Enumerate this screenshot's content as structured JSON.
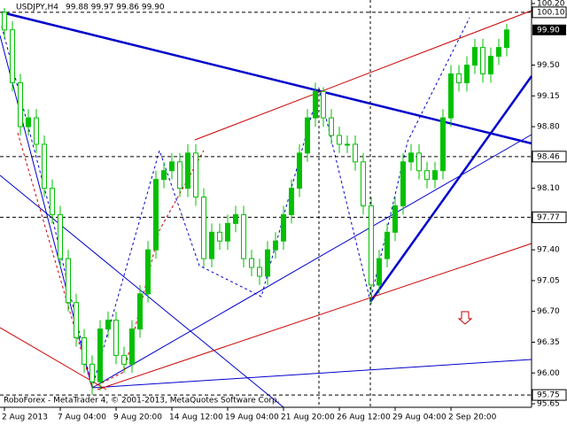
{
  "chart_data": {
    "type": "candlestick",
    "title": "USDJPY,H4",
    "ohlc_text": "99.88 99.97 99.86 99.90",
    "footer": "RoboForex - MetaTrader 4, © 2001-2013, MetaQuotes Software Corp.",
    "categories": [
      "2 Aug 2013",
      null,
      null,
      null,
      null,
      null,
      null,
      "7 Aug 04:00",
      null,
      null,
      null,
      null,
      null,
      null,
      "9 Aug 20:00",
      null,
      null,
      null,
      null,
      null,
      null,
      "14 Aug 12:00",
      null,
      null,
      null,
      null,
      null,
      null,
      "19 Aug 04:00",
      null,
      null,
      null,
      null,
      null,
      null,
      "21 Aug 20:00",
      null,
      null,
      null,
      null,
      null,
      null,
      "26 Aug 12:00",
      null,
      null,
      null,
      null,
      null,
      null,
      "29 Aug 04:00",
      null,
      null,
      null,
      null,
      null,
      null,
      "2 Sep 20:00",
      null,
      null,
      null,
      null,
      null,
      null,
      null
    ],
    "open": [
      100.1,
      99.9,
      99.3,
      98.8,
      98.9,
      98.6,
      98.1,
      97.8,
      97.3,
      96.8,
      96.4,
      96.1,
      95.9,
      96.5,
      96.6,
      96.2,
      96.1,
      96.5,
      96.9,
      97.4,
      98.2,
      98.3,
      98.4,
      98.1,
      98.5,
      98.0,
      97.3,
      97.6,
      97.5,
      97.7,
      97.8,
      97.3,
      97.2,
      97.1,
      97.4,
      97.5,
      97.8,
      98.1,
      98.5,
      98.9,
      99.2,
      98.9,
      98.7,
      98.6,
      98.6,
      98.4,
      97.9,
      97.0,
      97.3,
      97.6,
      97.9,
      98.4,
      98.5,
      98.3,
      98.2,
      98.3,
      98.9,
      99.4,
      99.3,
      99.5,
      99.7,
      99.4,
      99.6,
      99.7
    ],
    "high": [
      100.15,
      100.0,
      99.4,
      99.0,
      99.0,
      98.7,
      98.2,
      97.9,
      97.4,
      96.9,
      96.5,
      96.2,
      96.6,
      96.7,
      96.7,
      96.3,
      96.6,
      97.0,
      97.5,
      98.3,
      98.4,
      98.5,
      98.5,
      98.6,
      98.6,
      98.1,
      97.7,
      97.7,
      97.8,
      97.9,
      97.9,
      97.4,
      97.3,
      97.5,
      97.6,
      97.9,
      98.2,
      98.6,
      99.0,
      99.3,
      99.25,
      99.0,
      98.8,
      98.7,
      98.7,
      98.5,
      98.0,
      97.4,
      97.7,
      98.0,
      98.5,
      98.6,
      98.6,
      98.4,
      98.4,
      99.0,
      99.5,
      99.5,
      99.6,
      99.8,
      99.8,
      99.7,
      99.8,
      99.97
    ],
    "low": [
      99.8,
      99.2,
      98.7,
      98.7,
      98.5,
      98.0,
      97.7,
      97.2,
      96.7,
      96.3,
      96.0,
      95.75,
      95.8,
      96.4,
      96.1,
      96.0,
      96.0,
      96.4,
      96.8,
      97.3,
      98.1,
      98.2,
      98.0,
      98.0,
      97.9,
      97.2,
      97.2,
      97.4,
      97.4,
      97.6,
      97.2,
      97.1,
      97.0,
      97.0,
      97.3,
      97.4,
      97.7,
      98.0,
      98.4,
      98.8,
      98.8,
      98.6,
      98.5,
      98.5,
      98.3,
      97.8,
      96.78,
      96.9,
      97.2,
      97.5,
      97.8,
      98.3,
      98.2,
      98.1,
      98.1,
      98.2,
      98.8,
      99.2,
      99.2,
      99.4,
      99.3,
      99.3,
      99.5,
      99.6
    ],
    "close": [
      99.9,
      99.3,
      98.8,
      98.9,
      98.6,
      98.1,
      97.8,
      97.3,
      96.8,
      96.4,
      96.1,
      95.9,
      96.5,
      96.6,
      96.2,
      96.1,
      96.5,
      96.9,
      97.4,
      98.2,
      98.3,
      98.4,
      98.1,
      98.5,
      98.0,
      97.3,
      97.6,
      97.5,
      97.7,
      97.8,
      97.3,
      97.2,
      97.1,
      97.4,
      97.5,
      97.8,
      98.1,
      98.5,
      98.9,
      99.2,
      98.9,
      98.7,
      98.6,
      98.6,
      98.4,
      97.9,
      97.0,
      97.3,
      97.6,
      97.9,
      98.4,
      98.5,
      98.3,
      98.2,
      98.3,
      98.9,
      99.4,
      99.3,
      99.5,
      99.7,
      99.4,
      99.6,
      99.7,
      99.9
    ],
    "up_color": "#00c000",
    "down_color": "#ffffff",
    "ylim": [
      95.61,
      100.24
    ],
    "yticks": [
      {
        "value": 100.2,
        "label": "100.20"
      },
      {
        "value": 99.5,
        "label": "99.50"
      },
      99.15,
      {
        "value": 98.8,
        "label": "98.80"
      },
      {
        "value": 98.1,
        "label": "98.10"
      },
      {
        "value": 97.4,
        "label": "97.40"
      },
      97.05,
      {
        "value": 96.7,
        "label": "96.70"
      },
      96.35,
      {
        "value": 96,
        "label": "96.00"
      },
      95.65
    ],
    "levels": [
      {
        "value": 100.1,
        "label": "100.10"
      },
      98.46,
      97.77,
      95.75
    ],
    "current_price": {
      "value": 99.9,
      "label": "99.90"
    }
  }
}
